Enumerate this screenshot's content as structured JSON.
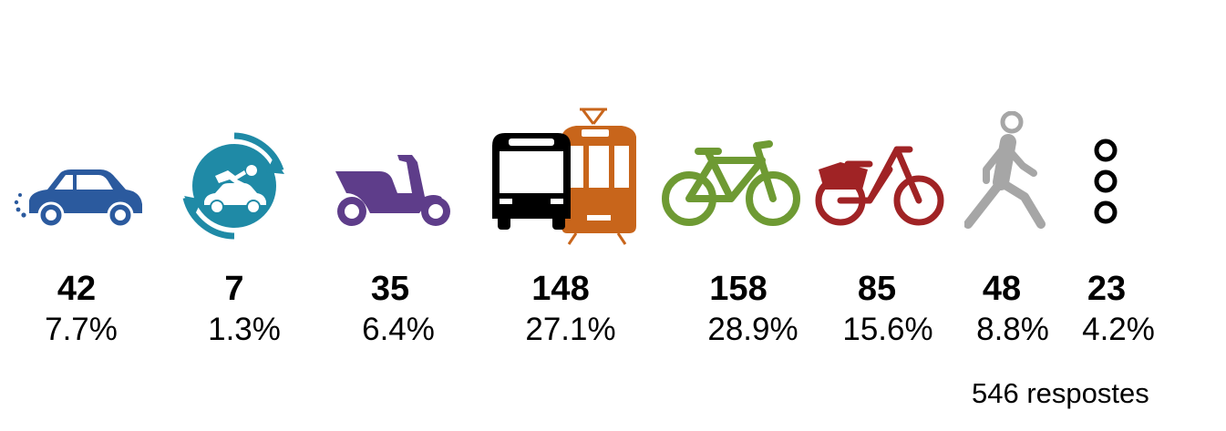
{
  "chart_data": {
    "type": "table",
    "categories": [
      "car",
      "carsharing",
      "motorcycle",
      "public-transport",
      "bicycle",
      "shared-bicycle",
      "walking",
      "other"
    ],
    "counts": [
      "42",
      "7",
      "35",
      "148",
      "158",
      "85",
      "48",
      "23"
    ],
    "percentages": [
      "7.7%",
      "1.3%",
      "6.4%",
      "27.1%",
      "28.9%",
      "15.6%",
      "8.8%",
      "4.2%"
    ],
    "total_label": "546 respostes"
  },
  "colors": {
    "car": "#2b5a9e",
    "carsharing": "#1f8aa6",
    "motorcycle": "#5e3d8a",
    "bus": "#000000",
    "tram": "#c8651b",
    "bicycle": "#6e9a33",
    "shared_bicycle": "#a02325",
    "walking": "#a6a6a6",
    "other": "#000000"
  },
  "icons": [
    "car-icon",
    "carsharing-icon",
    "motorcycle-icon",
    "bus-tram-icon",
    "bicycle-icon",
    "shared-bicycle-icon",
    "walking-icon",
    "more-icon"
  ]
}
